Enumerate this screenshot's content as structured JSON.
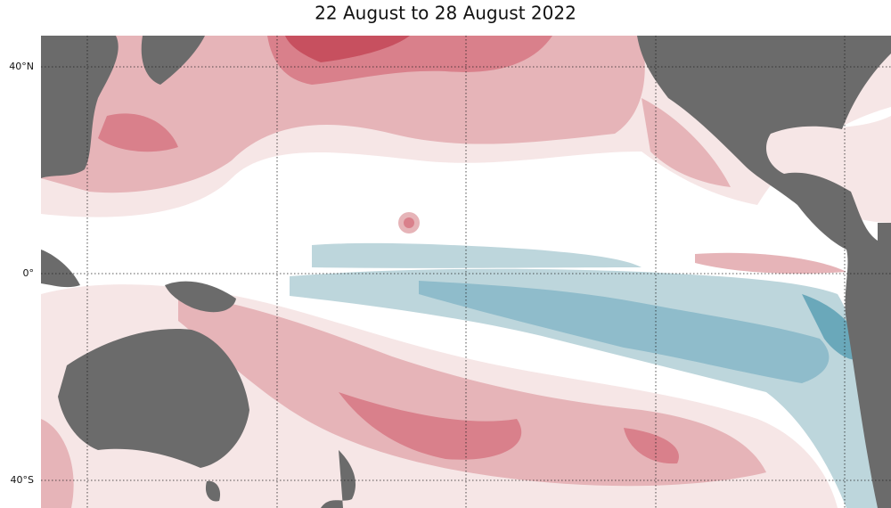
{
  "map": {
    "title": "22 August to 28 August 2022",
    "latitude_labels": [
      "40°N",
      "0°",
      "40°S"
    ]
  }
}
